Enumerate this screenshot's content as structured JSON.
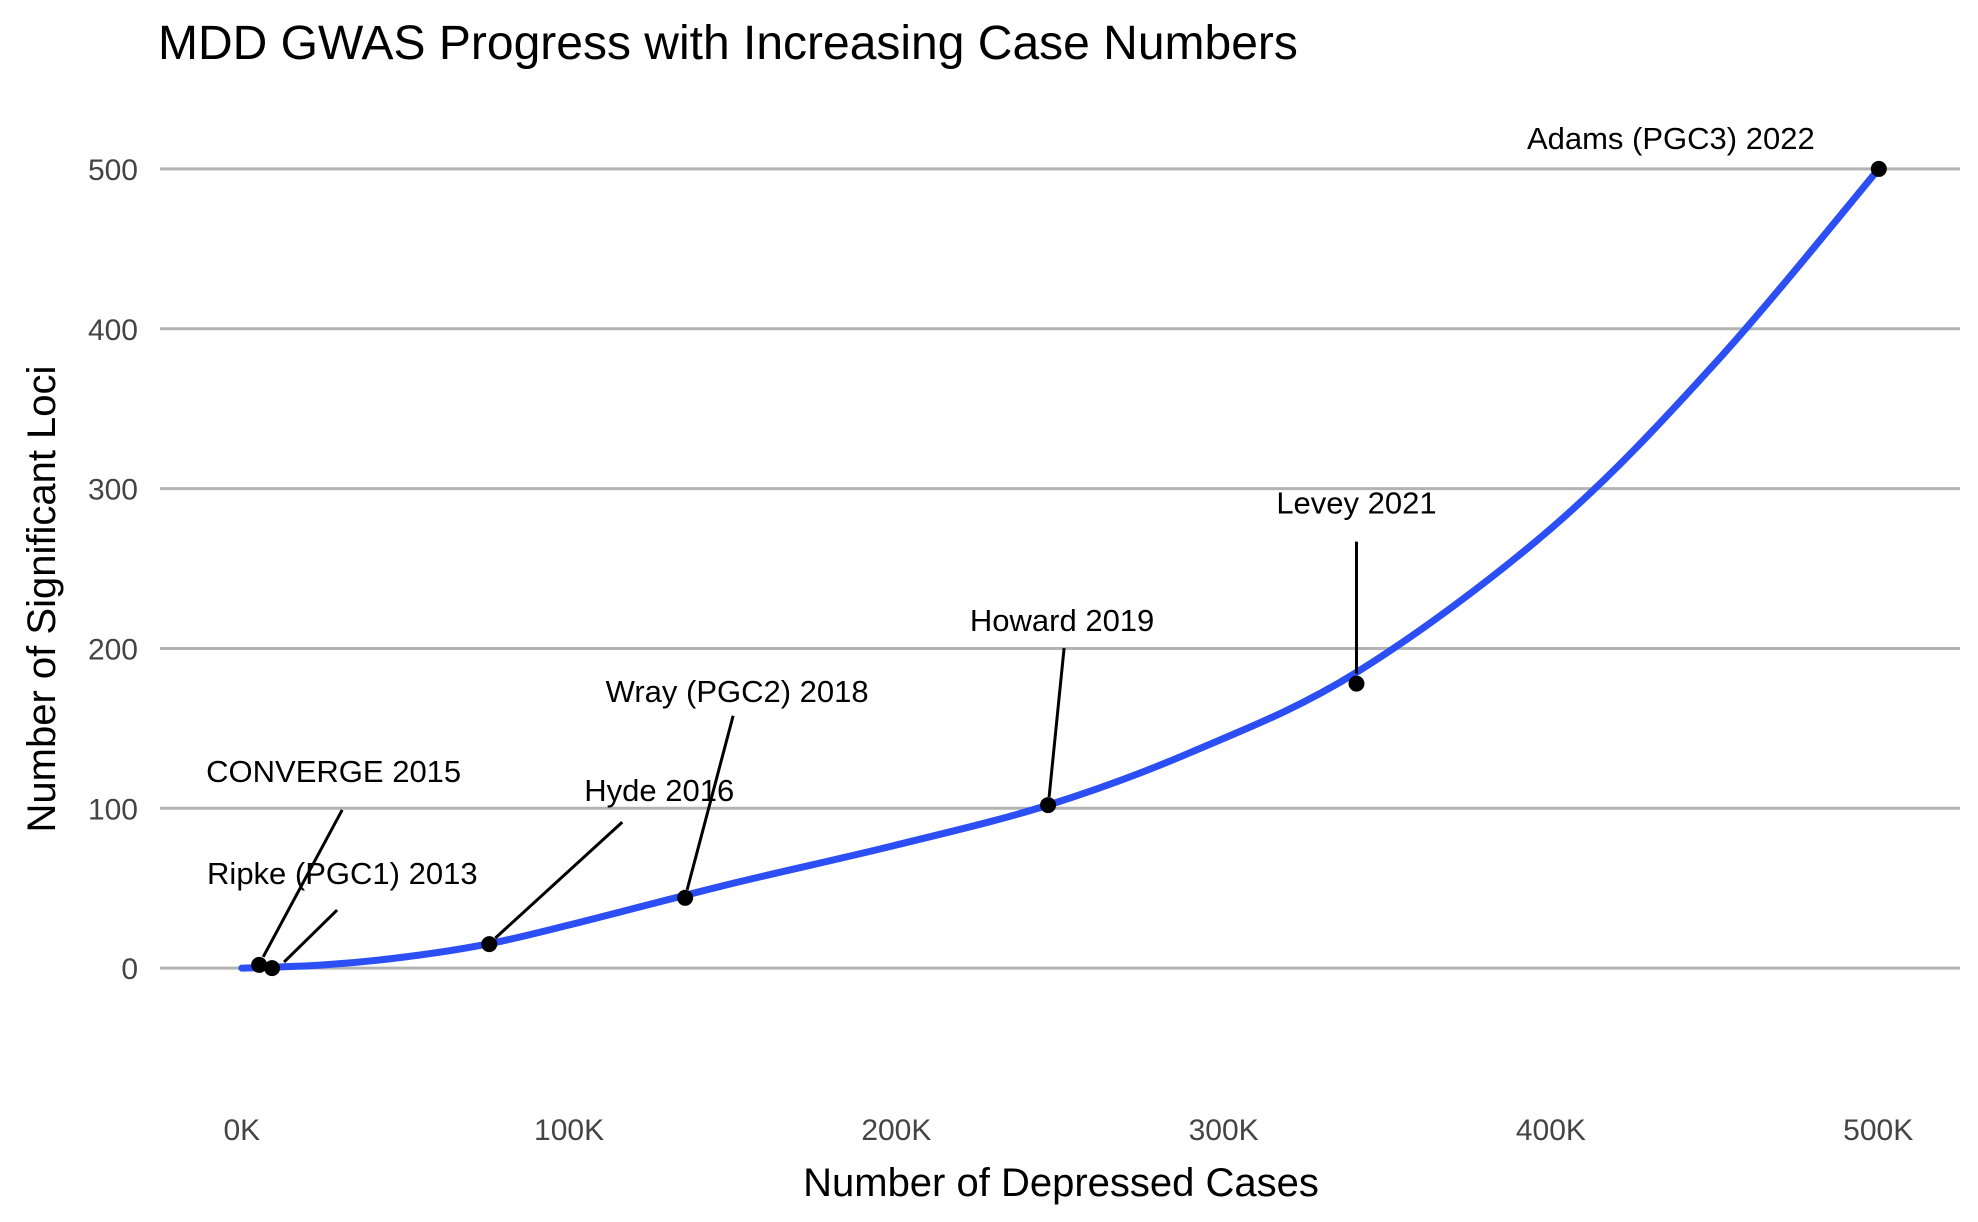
{
  "chart_data": {
    "type": "line",
    "title": "MDD GWAS Progress with Increasing Case Numbers",
    "xlabel": "Number of Depressed Cases",
    "ylabel": "Number of Significant Loci",
    "xlim": [
      -25000,
      525000
    ],
    "ylim": [
      -70,
      540
    ],
    "x_ticks": [
      0,
      100000,
      200000,
      300000,
      400000,
      500000
    ],
    "x_tick_labels": [
      "0K",
      "100K",
      "200K",
      "300K",
      "400K",
      "500K"
    ],
    "y_ticks": [
      0,
      100,
      200,
      300,
      400,
      500
    ],
    "y_tick_labels": [
      "0",
      "100",
      "200",
      "300",
      "400",
      "500"
    ],
    "grid": "horizontal major lines",
    "curve_color": "#2b4ef5",
    "point_color": "#000000",
    "points": [
      {
        "label": "Ripke (PGC1) 2013",
        "x": 9240,
        "y": 0
      },
      {
        "label": "CONVERGE 2015",
        "x": 5303,
        "y": 2
      },
      {
        "label": "Hyde 2016",
        "x": 75607,
        "y": 15
      },
      {
        "label": "Wray (PGC2) 2018",
        "x": 135458,
        "y": 44
      },
      {
        "label": "Howard 2019",
        "x": 246363,
        "y": 102
      },
      {
        "label": "Levey 2021",
        "x": 340591,
        "y": 178
      },
      {
        "label": "Adams (PGC3) 2022",
        "x": 500199,
        "y": 500
      }
    ],
    "trend_curve": {
      "x": [
        0,
        25000,
        50000,
        75000,
        100000,
        150000,
        200000,
        246363,
        290000,
        340591,
        400000,
        450000,
        500199
      ],
      "y": [
        0,
        2,
        7,
        15,
        27,
        53,
        77,
        102,
        135,
        185,
        275,
        378,
        500
      ]
    }
  }
}
